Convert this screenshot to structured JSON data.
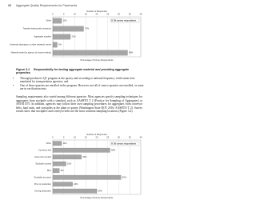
{
  "header": {
    "page_number": "20",
    "running_title": "Aggregate Quality Requirements for Pavements"
  },
  "chart_data": [
    {
      "type": "bar",
      "orientation": "horizontal",
      "axis_title": "Number of Responses",
      "x_label": "Percentage of Survey Respondents",
      "legend_note": "38 survey respondents",
      "color": "#a6a6a6",
      "categories": [
        "Other",
        "Transfer-testing with contractor",
        "Aggregate supplier",
        "University laboratory or other research center",
        "Material tested by agency (in-house testing)"
      ],
      "values": [
        4,
        14,
        8,
        2,
        34
      ],
      "value_labels": [
        "11%",
        "37%",
        "21%",
        "5%",
        "89%"
      ],
      "xlim": [
        0,
        40
      ],
      "xticks": [
        0,
        5,
        10,
        15,
        20,
        25,
        30,
        35,
        40
      ],
      "grid": true
    },
    {
      "type": "bar",
      "orientation": "horizontal",
      "axis_title": "Number of Responses",
      "x_label": "Percentage of Survey Respondents",
      "legend_note": "38 survey respondents",
      "color": "#a6a6a6",
      "categories": [
        "Other",
        "Conveyor belt",
        "Haul units at plant",
        "Stockpile at plant",
        "Bins",
        "Stockpile at quarry",
        "Prior to production",
        "During production"
      ],
      "values": [
        4,
        26,
        13,
        6,
        3,
        31,
        9,
        20
      ],
      "value_labels": [
        "11%",
        "68%",
        "34%",
        "16%",
        "8%",
        "82%",
        "24%",
        "53%"
      ],
      "xlim": [
        0,
        40
      ],
      "xticks": [
        0,
        5,
        10,
        15,
        20,
        25,
        30,
        35,
        40
      ],
      "grid": true
    }
  ],
  "figure_caption": {
    "label": "Figure 3.1",
    "text": "Responsibility for testing aggregate material and providing aggregate properties."
  },
  "bullets": [
    "Through producer's QC program at the quarry and according to national frequency verification tests mandated for transportation agencies; and",
    "One of those quarries are enrolled in the program. However, not all of source quarries are enrolled, or some are in verification tests."
  ],
  "paragraph": "Sampling requirements also varied among different agencies. Most agencies specify sampling techniques for aggregates from stockpile with a standard, such as AASHTO T 2 (Practice for Sampling of Aggregates) or ASTM D75. In addition, agencies may follow their own sampling procedures for aggregates from conveyor belts, haul units, and stockpiles at the plant or quarry (Washington State DOT 2016; AASHTO T 2). Survey results show that stockpiles and conveyor belts are the most common sampling locations (Figure 3.2)."
}
